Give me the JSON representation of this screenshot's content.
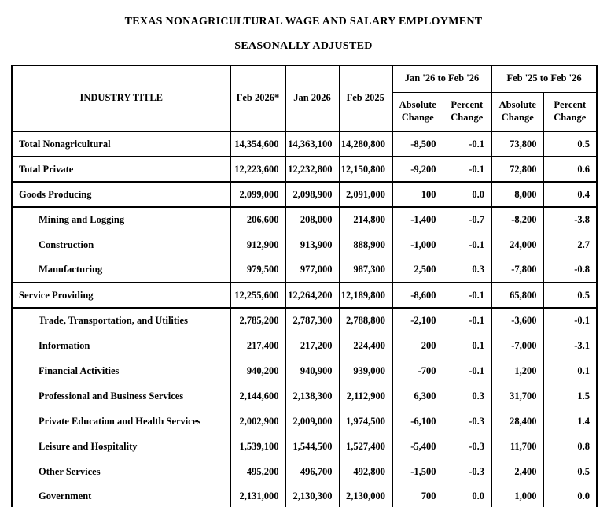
{
  "page": {
    "title": "TEXAS NONAGRICULTURAL WAGE AND SALARY EMPLOYMENT",
    "subtitle": "SEASONALLY ADJUSTED"
  },
  "colors": {
    "text": "#000000",
    "border": "#000000",
    "background": "#ffffff"
  },
  "table": {
    "header": {
      "industry_label": "INDUSTRY TITLE",
      "period_columns": [
        "Feb 2026*",
        "Jan 2026",
        "Feb 2025"
      ],
      "groups": [
        {
          "label": "Jan '26 to Feb '26",
          "sub": [
            "Absolute Change",
            "Percent Change"
          ]
        },
        {
          "label": "Feb '25 to Feb '26",
          "sub": [
            "Absolute Change",
            "Percent Change"
          ]
        }
      ]
    },
    "rows": [
      {
        "label": "Total Nonagricultural",
        "indent": 0,
        "sep": false,
        "values": [
          "14,354,600",
          "14,363,100",
          "14,280,800",
          "-8,500",
          "-0.1",
          "73,800",
          "0.5"
        ]
      },
      {
        "label": "Total Private",
        "indent": 0,
        "sep": true,
        "values": [
          "12,223,600",
          "12,232,800",
          "12,150,800",
          "-9,200",
          "-0.1",
          "72,800",
          "0.6"
        ]
      },
      {
        "label": "Goods Producing",
        "indent": 0,
        "sep": true,
        "values": [
          "2,099,000",
          "2,098,900",
          "2,091,000",
          "100",
          "0.0",
          "8,000",
          "0.4"
        ]
      },
      {
        "label": "Mining and Logging",
        "indent": 1,
        "sep": true,
        "values": [
          "206,600",
          "208,000",
          "214,800",
          "-1,400",
          "-0.7",
          "-8,200",
          "-3.8"
        ]
      },
      {
        "label": "Construction",
        "indent": 1,
        "sep": false,
        "values": [
          "912,900",
          "913,900",
          "888,900",
          "-1,000",
          "-0.1",
          "24,000",
          "2.7"
        ]
      },
      {
        "label": "Manufacturing",
        "indent": 1,
        "sep": false,
        "values": [
          "979,500",
          "977,000",
          "987,300",
          "2,500",
          "0.3",
          "-7,800",
          "-0.8"
        ]
      },
      {
        "label": "Service Providing",
        "indent": 0,
        "sep": true,
        "values": [
          "12,255,600",
          "12,264,200",
          "12,189,800",
          "-8,600",
          "-0.1",
          "65,800",
          "0.5"
        ]
      },
      {
        "label": "Trade, Transportation, and Utilities",
        "indent": 1,
        "sep": true,
        "values": [
          "2,785,200",
          "2,787,300",
          "2,788,800",
          "-2,100",
          "-0.1",
          "-3,600",
          "-0.1"
        ]
      },
      {
        "label": "Information",
        "indent": 1,
        "sep": false,
        "values": [
          "217,400",
          "217,200",
          "224,400",
          "200",
          "0.1",
          "-7,000",
          "-3.1"
        ]
      },
      {
        "label": "Financial Activities",
        "indent": 1,
        "sep": false,
        "values": [
          "940,200",
          "940,900",
          "939,000",
          "-700",
          "-0.1",
          "1,200",
          "0.1"
        ]
      },
      {
        "label": "Professional and Business Services",
        "indent": 1,
        "sep": false,
        "values": [
          "2,144,600",
          "2,138,300",
          "2,112,900",
          "6,300",
          "0.3",
          "31,700",
          "1.5"
        ]
      },
      {
        "label": "Private Education and Health Services",
        "indent": 1,
        "sep": false,
        "values": [
          "2,002,900",
          "2,009,000",
          "1,974,500",
          "-6,100",
          "-0.3",
          "28,400",
          "1.4"
        ]
      },
      {
        "label": "Leisure and Hospitality",
        "indent": 1,
        "sep": false,
        "values": [
          "1,539,100",
          "1,544,500",
          "1,527,400",
          "-5,400",
          "-0.3",
          "11,700",
          "0.8"
        ]
      },
      {
        "label": "Other Services",
        "indent": 1,
        "sep": false,
        "values": [
          "495,200",
          "496,700",
          "492,800",
          "-1,500",
          "-0.3",
          "2,400",
          "0.5"
        ]
      },
      {
        "label": "Government",
        "indent": 1,
        "sep": false,
        "values": [
          "2,131,000",
          "2,130,300",
          "2,130,000",
          "700",
          "0.0",
          "1,000",
          "0.0"
        ]
      }
    ]
  }
}
